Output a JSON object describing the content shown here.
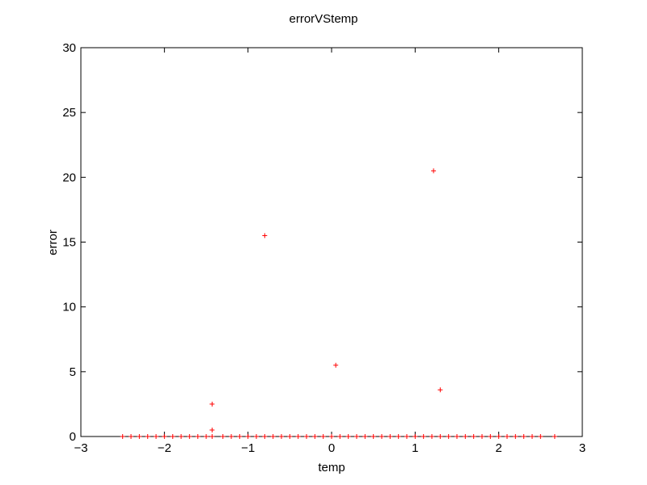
{
  "chart_data": {
    "type": "scatter",
    "title": "errorVStemp",
    "xlabel": "temp",
    "ylabel": "error",
    "xlim": [
      -3,
      3
    ],
    "ylim": [
      0,
      30
    ],
    "xticks": [
      "−3",
      "−2",
      "−1",
      "0",
      "1",
      "2",
      "3"
    ],
    "yticks": [
      "0",
      "5",
      "10",
      "15",
      "20",
      "25",
      "30"
    ],
    "grid": false,
    "marker": "+",
    "color": "#ff0000",
    "series": [
      {
        "x": [
          -2.5,
          -2.4,
          -2.3,
          -2.2,
          -2.1,
          -2.0,
          -1.9,
          -1.8,
          -1.7,
          -1.6,
          -1.5,
          -1.43,
          -1.43,
          -1.43,
          -1.3,
          -1.2,
          -1.1,
          -1.0,
          -0.9,
          -0.8,
          -0.8,
          -0.7,
          -0.6,
          -0.5,
          -0.4,
          -0.3,
          -0.2,
          -0.1,
          0.0,
          0.05,
          0.1,
          0.2,
          0.3,
          0.4,
          0.5,
          0.6,
          0.7,
          0.8,
          0.9,
          1.0,
          1.1,
          1.2,
          1.22,
          1.3,
          1.3,
          1.4,
          1.5,
          1.6,
          1.7,
          1.8,
          1.9,
          2.0,
          2.1,
          2.2,
          2.3,
          2.4,
          2.5,
          2.67
        ],
        "y": [
          0.0,
          0.0,
          0.0,
          0.0,
          0.0,
          0.0,
          0.0,
          0.0,
          0.0,
          0.0,
          0.0,
          2.5,
          0.5,
          0.0,
          0.0,
          0.0,
          0.0,
          0.0,
          0.0,
          15.5,
          0.0,
          0.0,
          0.0,
          0.0,
          0.0,
          0.0,
          0.0,
          0.0,
          0.0,
          5.5,
          0.0,
          0.0,
          0.0,
          0.0,
          0.0,
          0.0,
          0.0,
          0.0,
          0.0,
          0.0,
          0.0,
          0.0,
          20.5,
          3.6,
          0.0,
          0.0,
          0.0,
          0.0,
          0.0,
          0.0,
          0.0,
          0.0,
          0.0,
          0.0,
          0.0,
          0.0,
          0.0,
          0.0
        ]
      }
    ]
  }
}
